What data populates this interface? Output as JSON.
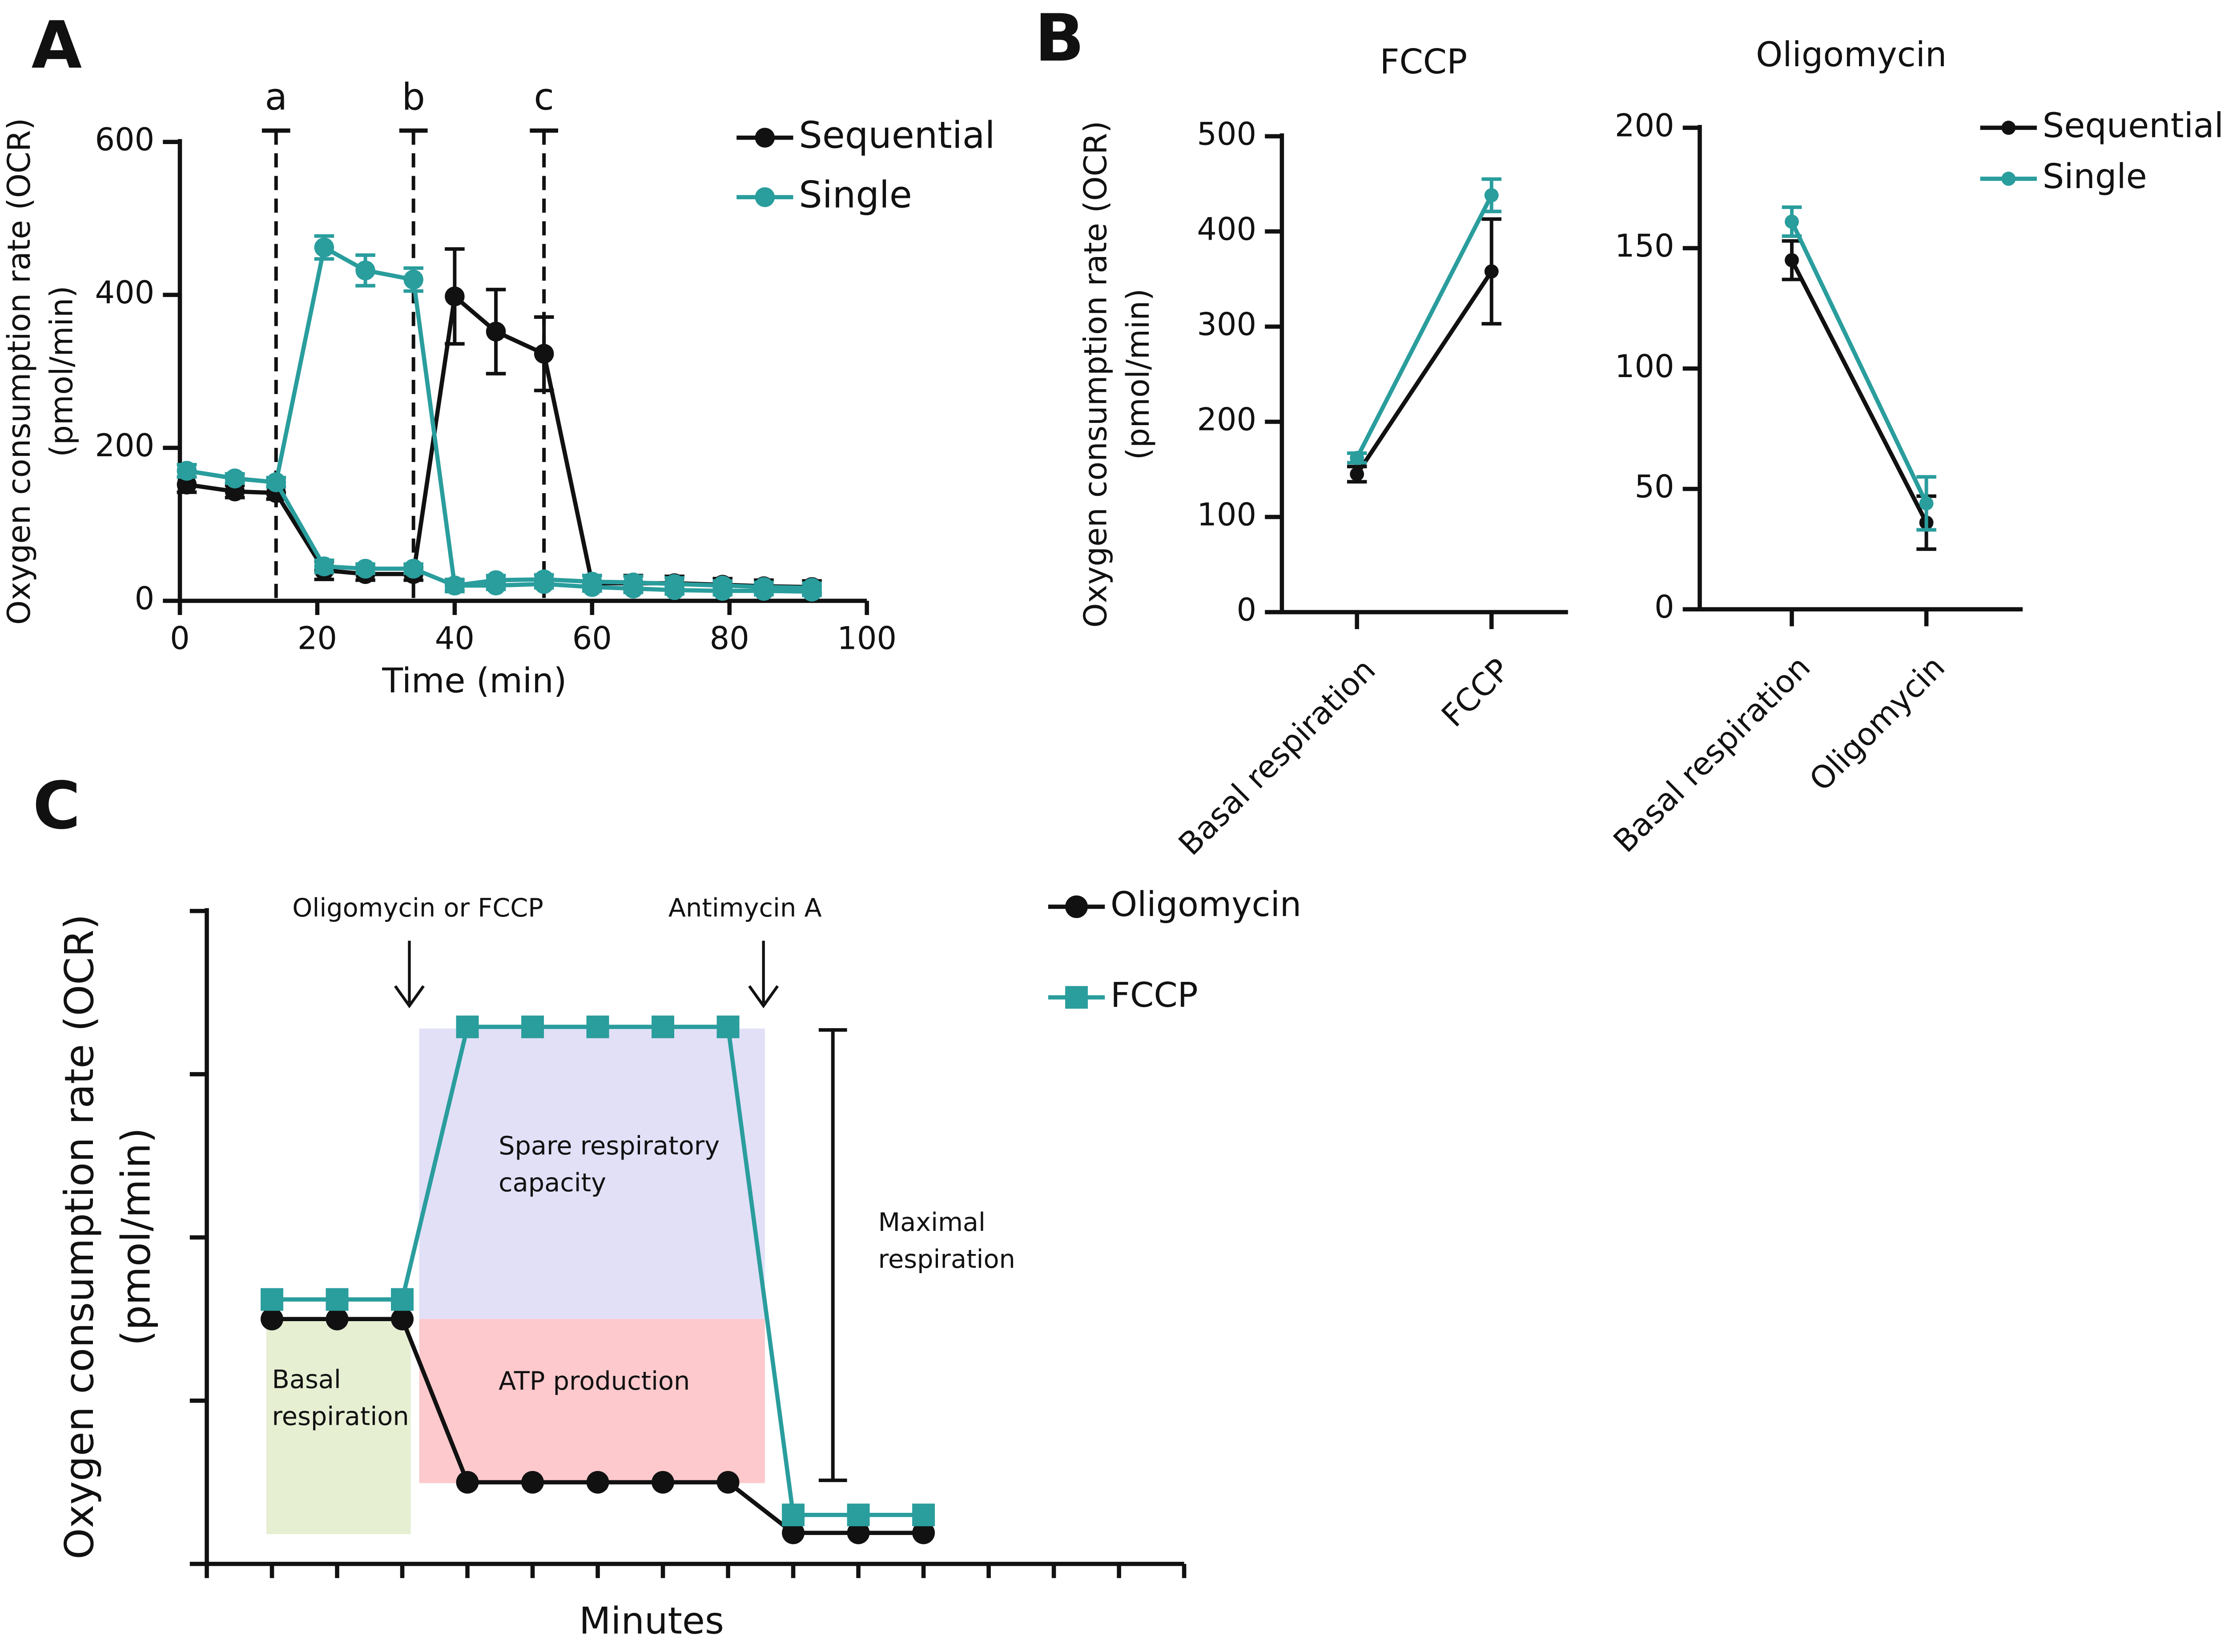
{
  "chart_data": [
    {
      "type": "line",
      "panel_label": "A",
      "x": [
        1,
        8,
        14,
        21,
        27,
        34,
        40,
        46,
        53,
        60,
        66,
        72,
        79,
        85,
        92
      ],
      "series": [
        {
          "name": "Sequential",
          "color": "#111111",
          "marker": "circle",
          "values": [
            152,
            143,
            141,
            40,
            35,
            35,
            398,
            352,
            323,
            23,
            23,
            23,
            21,
            19,
            18
          ],
          "errors": [
            10,
            8,
            8,
            12,
            8,
            8,
            62,
            55,
            48,
            10,
            10,
            9,
            8,
            8,
            8
          ]
        },
        {
          "name": "Single",
          "color": "#2a9d9d",
          "marker": "circle",
          "values": [
            170,
            160,
            155,
            462,
            432,
            420,
            20,
            27,
            28,
            25,
            24,
            22,
            20,
            18,
            17
          ],
          "errors": [
            8,
            6,
            6,
            15,
            20,
            15,
            8,
            6,
            6,
            8,
            8,
            8,
            6,
            6,
            6
          ]
        },
        {
          "color": "#2a9d9d",
          "marker": "circle",
          "values": [
            170,
            160,
            155,
            45,
            42,
            42,
            20,
            20,
            22,
            18,
            16,
            14,
            13,
            13,
            12
          ],
          "errors": [
            8,
            6,
            6,
            8,
            6,
            6,
            6,
            5,
            5,
            5,
            5,
            5,
            5,
            5,
            5
          ]
        }
      ],
      "annotations": [
        {
          "x": 14,
          "label": "a"
        },
        {
          "x": 34,
          "label": "b"
        },
        {
          "x": 53,
          "label": "c"
        }
      ],
      "xlim": [
        0,
        100
      ],
      "xticks": [
        0,
        20,
        40,
        60,
        80,
        100
      ],
      "ylim": [
        0,
        600
      ],
      "yticks": [
        0,
        200,
        400,
        600
      ],
      "xlabel": "Time (min)",
      "ylabel": [
        "Oxygen consumption rate (OCR)",
        "(pmol/min)"
      ]
    },
    {
      "type": "line",
      "panel_label": "B",
      "title": "FCCP",
      "categories": [
        "Basal respiration",
        "FCCP"
      ],
      "series": [
        {
          "name": "Sequential",
          "color": "#111111",
          "marker": "circle",
          "values": [
            145,
            358
          ],
          "errors": [
            8,
            55
          ]
        },
        {
          "name": "Single",
          "color": "#2a9d9d",
          "marker": "circle",
          "values": [
            162,
            438
          ],
          "errors": [
            5,
            17
          ]
        }
      ],
      "ylim": [
        0,
        500
      ],
      "yticks": [
        0,
        100,
        200,
        300,
        400,
        500
      ],
      "ylabel": [
        "Oxygen consumption rate (OCR)",
        "(pmol/min)"
      ],
      "legend": false
    },
    {
      "type": "line",
      "title": "Oligomycin",
      "categories": [
        "Basal respiration",
        "Oligomycin"
      ],
      "series": [
        {
          "name": "Sequential",
          "color": "#111111",
          "marker": "circle",
          "values": [
            145,
            36
          ],
          "errors": [
            8,
            11
          ]
        },
        {
          "name": "Single",
          "color": "#2a9d9d",
          "marker": "circle",
          "values": [
            161,
            44
          ],
          "errors": [
            6,
            11
          ]
        }
      ],
      "ylim": [
        0,
        200
      ],
      "yticks": [
        0,
        50,
        100,
        150,
        200
      ]
    },
    {
      "type": "line",
      "panel_label": "C",
      "x": [
        1,
        2,
        3,
        4,
        5,
        6,
        7,
        8,
        9,
        10,
        11
      ],
      "series": [
        {
          "name": "Oligomycin",
          "color": "#111111",
          "marker": "circle",
          "values": [
            1.5,
            1.5,
            1.5,
            0.5,
            0.5,
            0.5,
            0.5,
            0.5,
            0.19,
            0.19,
            0.19
          ]
        },
        {
          "name": "FCCP",
          "color": "#2a9d9d",
          "marker": "square",
          "values": [
            1.62,
            1.62,
            1.62,
            3.29,
            3.29,
            3.29,
            3.29,
            3.29,
            0.3,
            0.3,
            0.3
          ]
        }
      ],
      "xlim": [
        0,
        15
      ],
      "xticks": [
        0,
        1,
        2,
        3,
        4,
        5,
        6,
        7,
        8,
        9,
        10,
        11,
        12,
        13,
        14,
        15
      ],
      "ylim": [
        0,
        4
      ],
      "yticks": [
        0,
        1,
        2,
        3,
        4
      ],
      "tick_labels": false,
      "regions": [
        {
          "label": [
            "Basal",
            "respiration"
          ],
          "color": "#e6efd2"
        },
        {
          "label": [
            "ATP production"
          ],
          "color": "#fdc9cc"
        },
        {
          "label": [
            "Spare respiratory",
            "capacity"
          ],
          "color": "#e1e0f7"
        }
      ],
      "arrows": [
        {
          "label": "Oligomycin or FCCP"
        },
        {
          "label": "Antimycin A"
        }
      ],
      "bracket_label": [
        "Maximal",
        "respiration"
      ],
      "xlabel": "Minutes",
      "ylabel": [
        "Oxygen consumption rate (OCR)",
        "(pmol/min)"
      ]
    }
  ]
}
